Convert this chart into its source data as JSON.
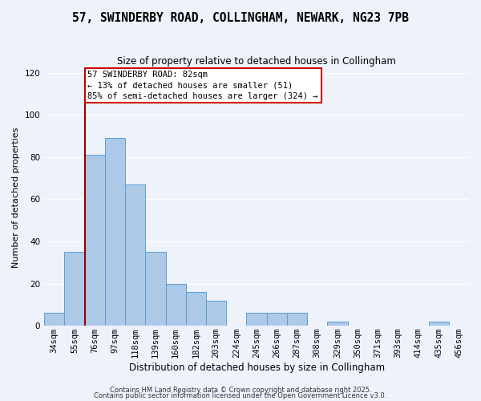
{
  "title": "57, SWINDERBY ROAD, COLLINGHAM, NEWARK, NG23 7PB",
  "subtitle": "Size of property relative to detached houses in Collingham",
  "xlabel": "Distribution of detached houses by size in Collingham",
  "ylabel": "Number of detached properties",
  "categories": [
    "34sqm",
    "55sqm",
    "76sqm",
    "97sqm",
    "118sqm",
    "139sqm",
    "160sqm",
    "182sqm",
    "203sqm",
    "224sqm",
    "245sqm",
    "266sqm",
    "287sqm",
    "308sqm",
    "329sqm",
    "350sqm",
    "371sqm",
    "393sqm",
    "414sqm",
    "435sqm",
    "456sqm"
  ],
  "values": [
    6,
    35,
    81,
    89,
    67,
    35,
    20,
    16,
    12,
    0,
    6,
    6,
    6,
    0,
    2,
    0,
    0,
    0,
    0,
    2,
    0
  ],
  "bar_color": "#adc9e8",
  "bar_edge_color": "#5a9fd4",
  "vline_color": "#990000",
  "annotation_title": "57 SWINDERBY ROAD: 82sqm",
  "annotation_line2": "← 13% of detached houses are smaller (51)",
  "annotation_line3": "85% of semi-detached houses are larger (324) →",
  "annotation_box_facecolor": "#ffffff",
  "annotation_box_edgecolor": "#cc0000",
  "ylim": [
    0,
    122
  ],
  "yticks": [
    0,
    20,
    40,
    60,
    80,
    100,
    120
  ],
  "background_color": "#eef2fb",
  "grid_color": "#ffffff",
  "footer1": "Contains HM Land Registry data © Crown copyright and database right 2025.",
  "footer2": "Contains public sector information licensed under the Open Government Licence v3.0.",
  "title_fontsize": 10.5,
  "subtitle_fontsize": 8.5,
  "xlabel_fontsize": 8.5,
  "ylabel_fontsize": 8,
  "tick_fontsize": 7.5,
  "footer_fontsize": 6
}
